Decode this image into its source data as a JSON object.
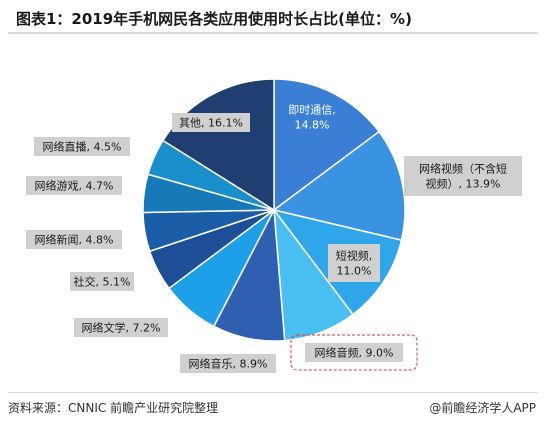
{
  "title": "图表1：2019年手机网民各类应用使用时长占比(单位：%)",
  "footer": {
    "source": "资料来源：CNNIC 前瞻产业研究院整理",
    "brand": "@前瞻经济学人APP"
  },
  "chart_data": {
    "type": "pie",
    "slices": [
      {
        "name": "即时通信",
        "value": 14.8,
        "label_lines": [
          "即时通信,",
          "14.8%"
        ],
        "color": "#3a7fd5"
      },
      {
        "name": "网络视频（不含短视频）",
        "value": 13.9,
        "label_lines": [
          "网络视频（不含短",
          "视频）, 13.9%"
        ],
        "color": "#3a93e0"
      },
      {
        "name": "短视频",
        "value": 11.0,
        "label_lines": [
          "短视频,",
          "11.0%"
        ],
        "color": "#2fa6ea"
      },
      {
        "name": "网络音频",
        "value": 9.0,
        "label_lines": [
          "网络音频, 9.0%"
        ],
        "color": "#49bff2",
        "highlighted": true
      },
      {
        "name": "网络音乐",
        "value": 8.9,
        "label_lines": [
          "网络音乐, 8.9%"
        ],
        "color": "#2e5fb0"
      },
      {
        "name": "网络文学",
        "value": 7.2,
        "label_lines": [
          "网络文学, 7.2%"
        ],
        "color": "#1ea0e8"
      },
      {
        "name": "社交",
        "value": 5.1,
        "label_lines": [
          "社交, 5.1%"
        ],
        "color": "#1d4f96"
      },
      {
        "name": "网络新闻",
        "value": 4.8,
        "label_lines": [
          "网络新闻, 4.8%"
        ],
        "color": "#1a5ea8"
      },
      {
        "name": "网络游戏",
        "value": 4.7,
        "label_lines": [
          "网络游戏, 4.7%"
        ],
        "color": "#1679b8"
      },
      {
        "name": "网络直播",
        "value": 4.5,
        "label_lines": [
          "网络直播, 4.5%"
        ],
        "color": "#198fcc"
      },
      {
        "name": "其他",
        "value": 16.1,
        "label_lines": [
          "其他, 16.1%"
        ],
        "color": "#1f3f73"
      }
    ]
  }
}
